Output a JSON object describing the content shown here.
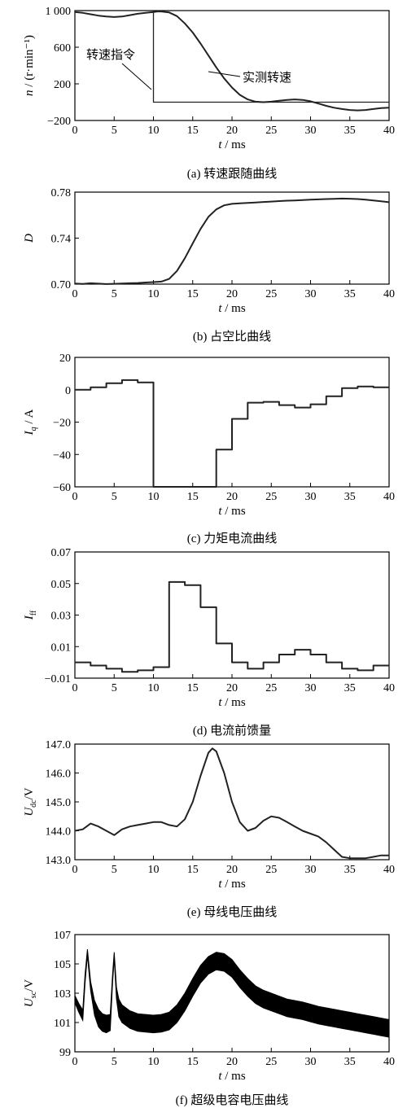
{
  "chart_data": [
    {
      "panel": "a",
      "type": "line",
      "caption": "(a)  转速跟随曲线",
      "xlabel": "t / ms",
      "ylabel": "n / (r·min⁻¹)",
      "xlim": [
        0,
        40
      ],
      "ylim": [
        -200,
        1000
      ],
      "xticks": [
        "0",
        "5",
        "10",
        "15",
        "20",
        "25",
        "30",
        "35",
        "40"
      ],
      "yticks": [
        "1 000",
        "600",
        "200",
        "−200"
      ],
      "ytick_values": [
        1000,
        600,
        200,
        -200
      ],
      "annotations": [
        "转速指令",
        "实测转速"
      ],
      "series": [
        {
          "name": "转速指令",
          "step": true,
          "x": [
            0,
            10,
            10,
            40
          ],
          "y": [
            1000,
            1000,
            0,
            0
          ]
        },
        {
          "name": "实测转速",
          "x": [
            0,
            1,
            2,
            3,
            4,
            5,
            6,
            7,
            8,
            9,
            10,
            10.5,
            11,
            12,
            13,
            14,
            15,
            16,
            17,
            18,
            19,
            20,
            21,
            22,
            23,
            24,
            25,
            26,
            27,
            28,
            29,
            30,
            31,
            32,
            33,
            34,
            35,
            36,
            37,
            38,
            39,
            40
          ],
          "y": [
            985,
            975,
            960,
            945,
            935,
            930,
            935,
            950,
            965,
            975,
            985,
            990,
            990,
            980,
            940,
            860,
            760,
            640,
            510,
            380,
            260,
            160,
            80,
            30,
            5,
            0,
            5,
            15,
            25,
            30,
            25,
            10,
            -15,
            -40,
            -60,
            -75,
            -85,
            -90,
            -85,
            -75,
            -65,
            -60
          ]
        }
      ]
    },
    {
      "panel": "b",
      "type": "line",
      "caption": "(b)  占空比曲线",
      "xlabel": "t / ms",
      "ylabel": "D",
      "xlim": [
        0,
        40
      ],
      "ylim": [
        0.7,
        0.78
      ],
      "xticks": [
        "0",
        "5",
        "10",
        "15",
        "20",
        "25",
        "30",
        "35",
        "40"
      ],
      "yticks": [
        "0.78",
        "0.74",
        "0.70"
      ],
      "ytick_values": [
        0.78,
        0.74,
        0.7
      ],
      "series": [
        {
          "x": [
            0,
            1,
            2,
            3,
            4,
            5,
            6,
            7,
            8,
            9,
            10,
            11,
            12,
            13,
            14,
            15,
            16,
            17,
            18,
            19,
            20,
            21,
            22,
            23,
            24,
            25,
            26,
            27,
            28,
            29,
            30,
            31,
            32,
            33,
            34,
            35,
            36,
            37,
            38,
            39,
            40
          ],
          "y": [
            0.7005,
            0.7002,
            0.7008,
            0.7004,
            0.7001,
            0.7003,
            0.7006,
            0.7008,
            0.701,
            0.7014,
            0.7018,
            0.7022,
            0.7045,
            0.7115,
            0.7225,
            0.7355,
            0.748,
            0.7585,
            0.765,
            0.7685,
            0.7698,
            0.7702,
            0.7706,
            0.771,
            0.7714,
            0.7718,
            0.7722,
            0.7726,
            0.7728,
            0.7731,
            0.7734,
            0.7737,
            0.774,
            0.7742,
            0.7744,
            0.7743,
            0.774,
            0.7735,
            0.7728,
            0.772,
            0.7712
          ]
        }
      ]
    },
    {
      "panel": "c",
      "type": "line",
      "caption": "(c)  力矩电流曲线",
      "xlabel": "t / ms",
      "ylabel": "Iq / A",
      "ylabel_main": "I",
      "ylabel_sub": "q",
      "ylabel_unit": " / A",
      "xlim": [
        0,
        40
      ],
      "ylim": [
        -60,
        20
      ],
      "xticks": [
        "0",
        "5",
        "10",
        "15",
        "20",
        "25",
        "30",
        "35",
        "40"
      ],
      "yticks": [
        "20",
        "0",
        "−20",
        "−40",
        "−60"
      ],
      "ytick_values": [
        20,
        0,
        -20,
        -40,
        -60
      ],
      "series": [
        {
          "step": true,
          "x": [
            0,
            2,
            4,
            6,
            8,
            10,
            12,
            14,
            16,
            18,
            20,
            22,
            24,
            26,
            28,
            30,
            32,
            34,
            36,
            38,
            40
          ],
          "y": [
            0,
            1.5,
            4,
            6,
            4.5,
            -60,
            -60,
            -60,
            -60,
            -37,
            -18,
            -8,
            -7.5,
            -9.5,
            -11,
            -9,
            -4,
            1,
            2,
            1.5,
            1.5
          ]
        }
      ]
    },
    {
      "panel": "d",
      "type": "line",
      "caption": "(d)  电流前馈量",
      "xlabel": "t / ms",
      "ylabel": "Iff",
      "ylabel_main": "I",
      "ylabel_sub": "ff",
      "ylabel_unit": "",
      "xlim": [
        0,
        40
      ],
      "ylim": [
        -0.01,
        0.07
      ],
      "xticks": [
        "0",
        "5",
        "10",
        "15",
        "20",
        "25",
        "30",
        "35",
        "40"
      ],
      "yticks": [
        "0.07",
        "0.05",
        "0.03",
        "0.01",
        "−0.01"
      ],
      "ytick_values": [
        0.07,
        0.05,
        0.03,
        0.01,
        -0.01
      ],
      "series": [
        {
          "step": true,
          "x": [
            0,
            2,
            4,
            6,
            8,
            10,
            12,
            14,
            16,
            18,
            20,
            22,
            24,
            26,
            28,
            30,
            32,
            34,
            36,
            38,
            40
          ],
          "y": [
            0.0,
            -0.002,
            -0.004,
            -0.006,
            -0.005,
            -0.003,
            0.051,
            0.049,
            0.035,
            0.012,
            0.0,
            -0.004,
            0.0,
            0.005,
            0.008,
            0.005,
            0.0,
            -0.004,
            -0.005,
            -0.002,
            -0.002
          ]
        }
      ]
    },
    {
      "panel": "e",
      "type": "line",
      "caption": "(e)  母线电压曲线",
      "xlabel": "t / ms",
      "ylabel": "Udc/V",
      "ylabel_main": "U",
      "ylabel_sub": "dc",
      "ylabel_unit": "/V",
      "xlim": [
        0,
        40
      ],
      "ylim": [
        143.0,
        147.0
      ],
      "xticks": [
        "0",
        "5",
        "10",
        "15",
        "20",
        "25",
        "30",
        "35",
        "40"
      ],
      "yticks": [
        "147.0",
        "146.0",
        "145.0",
        "144.0",
        "143.0"
      ],
      "ytick_values": [
        147,
        146,
        145,
        144,
        143
      ],
      "series": [
        {
          "x": [
            0,
            1,
            2,
            3,
            4,
            5,
            6,
            7,
            8,
            9,
            10,
            11,
            12,
            13,
            14,
            15,
            16,
            17,
            17.5,
            18,
            19,
            20,
            21,
            22,
            23,
            24,
            25,
            26,
            27,
            28,
            29,
            30,
            31,
            32,
            33,
            34,
            35,
            36,
            37,
            38,
            39,
            40
          ],
          "y": [
            144.0,
            144.05,
            144.25,
            144.15,
            144.0,
            143.85,
            144.05,
            144.15,
            144.2,
            144.25,
            144.3,
            144.3,
            144.2,
            144.15,
            144.4,
            145.0,
            145.9,
            146.7,
            146.85,
            146.75,
            146.0,
            145.0,
            144.3,
            144.0,
            144.1,
            144.35,
            144.5,
            144.45,
            144.3,
            144.15,
            144.0,
            143.9,
            143.8,
            143.6,
            143.35,
            143.1,
            143.05,
            143.05,
            143.05,
            143.1,
            143.15,
            143.15
          ]
        }
      ]
    },
    {
      "panel": "f",
      "type": "line",
      "caption": "(f)  超级电容电压曲线",
      "xlabel": "t / ms",
      "ylabel": "Usc/V",
      "ylabel_main": "U",
      "ylabel_sub": "sc",
      "ylabel_unit": "/V",
      "xlim": [
        0,
        40
      ],
      "ylim": [
        99,
        107
      ],
      "xticks": [
        "0",
        "5",
        "10",
        "15",
        "20",
        "25",
        "30",
        "35",
        "40"
      ],
      "yticks": [
        "107",
        "105",
        "103",
        "101",
        "99"
      ],
      "ytick_values": [
        107,
        105,
        103,
        101,
        99
      ],
      "band": true,
      "series": [
        {
          "x": [
            0,
            0.5,
            1,
            1.3,
            1.6,
            2,
            2.5,
            3,
            3.5,
            4,
            4.5,
            4.8,
            5,
            5.3,
            5.6,
            6,
            7,
            8,
            9,
            10,
            11,
            12,
            13,
            14,
            15,
            16,
            17,
            18,
            19,
            20,
            21,
            22,
            23,
            24,
            25,
            26,
            27,
            28,
            29,
            30,
            31,
            32,
            33,
            34,
            35,
            36,
            37,
            38,
            39,
            40
          ],
          "y": [
            102.6,
            102.0,
            101.5,
            104.0,
            105.8,
            103.5,
            102.0,
            101.3,
            101.0,
            100.9,
            101.0,
            104.0,
            105.6,
            103.0,
            102.0,
            101.6,
            101.2,
            101.0,
            100.95,
            100.9,
            100.95,
            101.1,
            101.6,
            102.4,
            103.4,
            104.3,
            104.9,
            105.2,
            105.1,
            104.7,
            104.0,
            103.4,
            102.9,
            102.6,
            102.4,
            102.2,
            102.0,
            101.9,
            101.8,
            101.65,
            101.5,
            101.4,
            101.3,
            101.2,
            101.1,
            101.0,
            100.9,
            100.8,
            100.7,
            100.6
          ],
          "band_halfwidth": [
            0.25,
            0.3,
            0.35,
            0.3,
            0.2,
            0.3,
            0.5,
            0.6,
            0.6,
            0.6,
            0.55,
            0.3,
            0.2,
            0.4,
            0.6,
            0.6,
            0.6,
            0.6,
            0.6,
            0.6,
            0.6,
            0.6,
            0.6,
            0.6,
            0.6,
            0.6,
            0.6,
            0.6,
            0.6,
            0.6,
            0.6,
            0.6,
            0.6,
            0.6,
            0.6,
            0.6,
            0.6,
            0.6,
            0.6,
            0.6,
            0.6,
            0.6,
            0.6,
            0.6,
            0.6,
            0.6,
            0.6,
            0.6,
            0.6,
            0.6
          ]
        }
      ]
    }
  ]
}
